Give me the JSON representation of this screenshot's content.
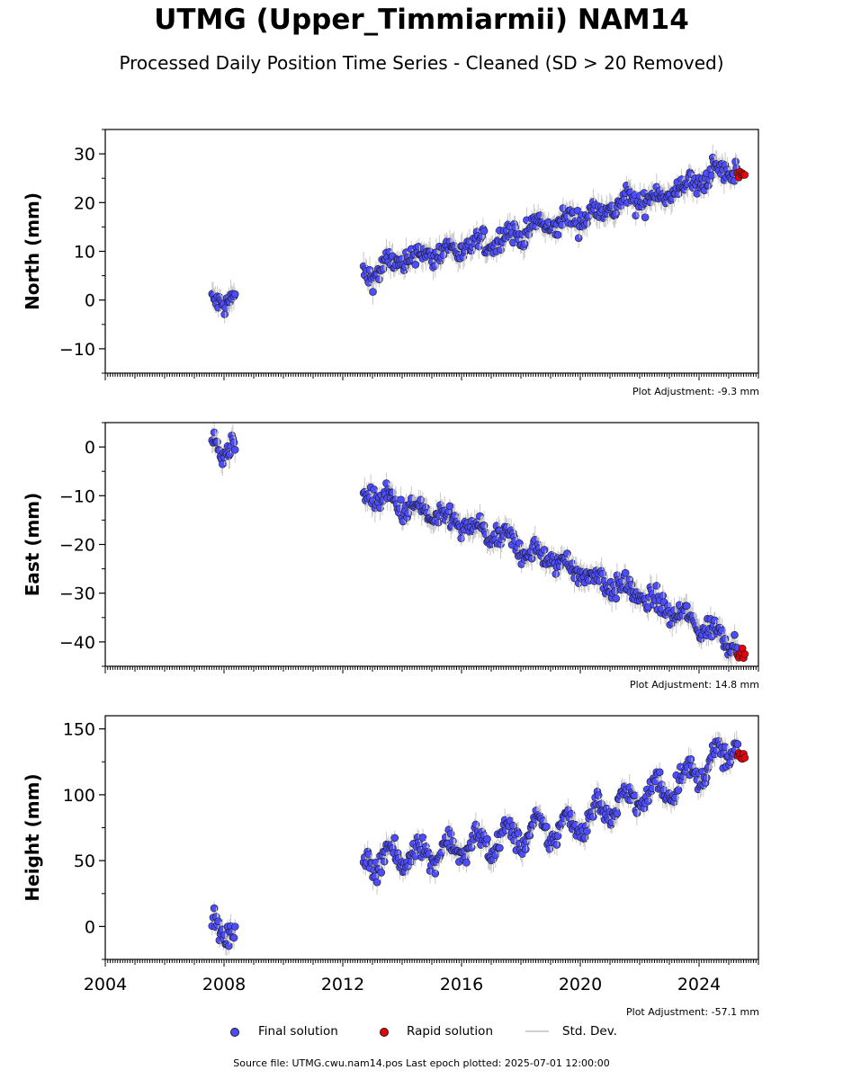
{
  "title": "UTMG (Upper_Timmiarmii) NAM14",
  "subtitle": "Processed Daily Position Time Series - Cleaned (SD > 20 Removed)",
  "footer": "Source file: UTMG.cwu.nam14.pos  Last epoch plotted: 2025-07-01 12:00:00",
  "legend": {
    "final": "Final solution",
    "rapid": "Rapid solution",
    "std": "Std. Dev."
  },
  "colors": {
    "final": "#4d4dff",
    "rapid": "#e8000b",
    "std": "#c8c8c8",
    "outline": "#1a1a1a"
  },
  "chart_data": [
    {
      "type": "scatter",
      "ylabel": "North (mm)",
      "adjustment": "Plot Adjustment: -9.3 mm",
      "xlim": [
        2004,
        2026
      ],
      "ylim": [
        -15,
        35
      ],
      "yticks": [
        -10,
        0,
        10,
        20,
        30
      ],
      "ytick_labels": [
        "−10",
        "0",
        "10",
        "20",
        "30"
      ],
      "series": [
        {
          "key": "final",
          "segments": [
            {
              "x": [
                2007.6,
                2008.0,
                2008.4
              ],
              "y": [
                -1,
                0,
                1
              ]
            },
            {
              "x": [
                2012.7,
                2013.5,
                2014.5,
                2015.5,
                2016.5,
                2017.5,
                2018.5,
                2019.5,
                2020.5,
                2021.5,
                2022.5,
                2023.5,
                2024.5,
                2025.3
              ],
              "y": [
                5,
                7,
                9,
                10,
                11,
                13,
                15,
                16,
                18,
                20,
                21,
                23,
                26,
                27
              ]
            }
          ]
        },
        {
          "key": "rapid",
          "segments": [
            {
              "x": [
                2025.3,
                2025.55
              ],
              "y": [
                26,
                26
              ]
            }
          ]
        }
      ]
    },
    {
      "type": "scatter",
      "ylabel": "East (mm)",
      "adjustment": "Plot Adjustment: 14.8 mm",
      "xlim": [
        2004,
        2026
      ],
      "ylim": [
        -45,
        5
      ],
      "yticks": [
        -40,
        -30,
        -20,
        -10,
        0
      ],
      "ytick_labels": [
        "−40",
        "−30",
        "−20",
        "−10",
        "0"
      ],
      "series": [
        {
          "key": "final",
          "segments": [
            {
              "x": [
                2007.6,
                2008.0,
                2008.4
              ],
              "y": [
                0,
                0,
                0
              ]
            },
            {
              "x": [
                2012.7,
                2013.5,
                2014.5,
                2015.5,
                2016.5,
                2017.5,
                2018.5,
                2019.5,
                2020.5,
                2021.5,
                2022.5,
                2023.5,
                2024.5,
                2025.3
              ],
              "y": [
                -9,
                -11,
                -13,
                -15,
                -17,
                -19,
                -22,
                -24,
                -27,
                -29,
                -32,
                -35,
                -38,
                -40
              ]
            }
          ]
        },
        {
          "key": "rapid",
          "segments": [
            {
              "x": [
                2025.3,
                2025.55
              ],
              "y": [
                -42,
                -43
              ]
            }
          ]
        }
      ]
    },
    {
      "type": "scatter",
      "ylabel": "Height (mm)",
      "adjustment": "Plot Adjustment: -57.1 mm",
      "xlim": [
        2004,
        2026
      ],
      "ylim": [
        -25,
        160
      ],
      "yticks": [
        0,
        50,
        100,
        150
      ],
      "ytick_labels": [
        "0",
        "50",
        "100",
        "150"
      ],
      "xticks": [
        2004,
        2008,
        2012,
        2016,
        2020,
        2024
      ],
      "xtick_labels": [
        "2004",
        "2008",
        "2012",
        "2016",
        "2020",
        "2024"
      ],
      "series": [
        {
          "key": "final",
          "segments": [
            {
              "x": [
                2007.6,
                2008.0,
                2008.4
              ],
              "y": [
                -2,
                0,
                -5
              ]
            },
            {
              "x": [
                2012.7,
                2013.5,
                2014.5,
                2015.5,
                2016.5,
                2017.5,
                2018.5,
                2019.5,
                2020.5,
                2021.5,
                2022.5,
                2023.5,
                2024.5,
                2025.3
              ],
              "y": [
                50,
                52,
                55,
                58,
                62,
                67,
                72,
                75,
                85,
                95,
                102,
                112,
                125,
                140
              ]
            }
          ]
        },
        {
          "key": "rapid",
          "segments": [
            {
              "x": [
                2025.3,
                2025.55
              ],
              "y": [
                128,
                130
              ]
            }
          ]
        }
      ]
    }
  ]
}
